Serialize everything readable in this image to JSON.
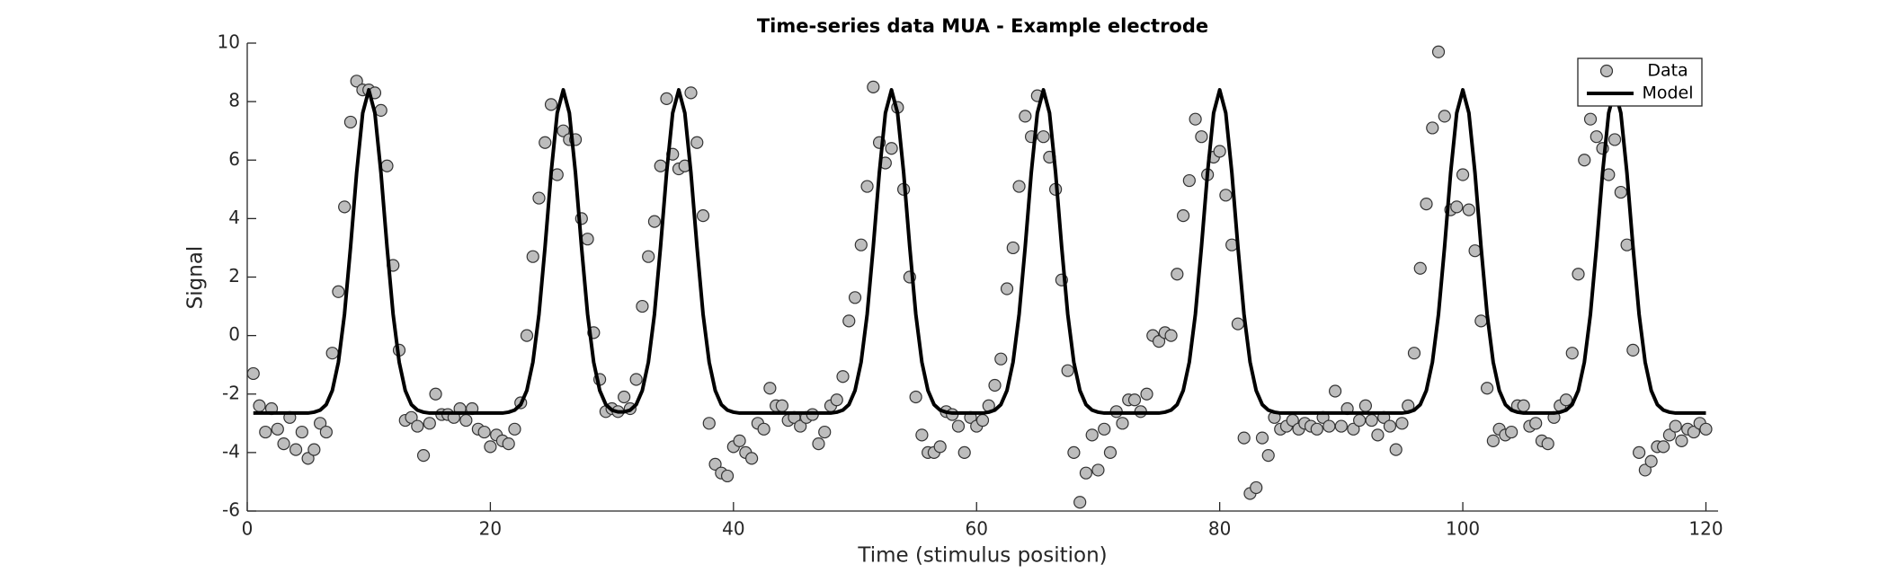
{
  "chart_data": {
    "type": "scatter",
    "title": "Time-series data MUA - Example electrode",
    "x_label": "Time (stimulus position)",
    "y_label": "Signal",
    "xlim": [
      0,
      121
    ],
    "ylim": [
      -6,
      10
    ],
    "xticks": [
      0,
      20,
      40,
      60,
      80,
      100,
      120
    ],
    "yticks": [
      -6,
      -4,
      -2,
      0,
      2,
      4,
      6,
      8,
      10
    ],
    "legend": "upper right",
    "x": [
      0.5,
      1,
      1.5,
      2,
      2.5,
      3,
      3.5,
      4,
      4.5,
      5,
      5.5,
      6,
      6.5,
      7,
      7.5,
      8,
      8.5,
      9,
      9.5,
      10,
      10.5,
      11,
      11.5,
      12,
      12.5,
      13,
      13.5,
      14,
      14.5,
      15,
      15.5,
      16,
      16.5,
      17,
      17.5,
      18,
      18.5,
      19,
      19.5,
      20,
      20.5,
      21,
      21.5,
      22,
      22.5,
      23,
      23.5,
      24,
      24.5,
      25,
      25.5,
      26,
      26.5,
      27,
      27.5,
      28,
      28.5,
      29,
      29.5,
      30,
      30.5,
      31,
      31.5,
      32,
      32.5,
      33,
      33.5,
      34,
      34.5,
      35,
      35.5,
      36,
      36.5,
      37,
      37.5,
      38,
      38.5,
      39,
      39.5,
      40,
      40.5,
      41,
      41.5,
      42,
      42.5,
      43,
      43.5,
      44,
      44.5,
      45,
      45.5,
      46,
      46.5,
      47,
      47.5,
      48,
      48.5,
      49,
      49.5,
      50,
      50.5,
      51,
      51.5,
      52,
      52.5,
      53,
      53.5,
      54,
      54.5,
      55,
      55.5,
      56,
      56.5,
      57,
      57.5,
      58,
      58.5,
      59,
      59.5,
      60,
      60.5,
      61,
      61.5,
      62,
      62.5,
      63,
      63.5,
      64,
      64.5,
      65,
      65.5,
      66,
      66.5,
      67,
      67.5,
      68,
      68.5,
      69,
      69.5,
      70,
      70.5,
      71,
      71.5,
      72,
      72.5,
      73,
      73.5,
      74,
      74.5,
      75,
      75.5,
      76,
      76.5,
      77,
      77.5,
      78,
      78.5,
      79,
      79.5,
      80,
      80.5,
      81,
      81.5,
      82,
      82.5,
      83,
      83.5,
      84,
      84.5,
      85,
      85.5,
      86,
      86.5,
      87,
      87.5,
      88,
      88.5,
      89,
      89.5,
      90,
      90.5,
      91,
      91.5,
      92,
      92.5,
      93,
      93.5,
      94,
      94.5,
      95,
      95.5,
      96,
      96.5,
      97,
      97.5,
      98,
      98.5,
      99,
      99.5,
      100,
      100.5,
      101,
      101.5,
      102,
      102.5,
      103,
      103.5,
      104,
      104.5,
      105,
      105.5,
      106,
      106.5,
      107,
      107.5,
      108,
      108.5,
      109,
      109.5,
      110,
      110.5,
      111,
      111.5,
      112,
      112.5,
      113,
      113.5,
      114,
      114.5,
      115,
      115.5,
      116,
      116.5,
      117,
      117.5,
      118,
      118.5,
      119,
      119.5,
      120
    ],
    "series": [
      {
        "name": "Data",
        "type": "scatter",
        "color": "#bdbdbd",
        "values": [
          -1.3,
          -2.4,
          -3.3,
          -2.5,
          -3.2,
          -3.7,
          -2.8,
          -3.9,
          -3.3,
          -4.2,
          -3.9,
          -3.0,
          -3.3,
          -0.6,
          1.5,
          4.4,
          7.3,
          8.7,
          8.4,
          8.4,
          8.3,
          7.7,
          5.8,
          2.4,
          -0.5,
          -2.9,
          -2.8,
          -3.1,
          -4.1,
          -3.0,
          -2.0,
          -2.7,
          -2.7,
          -2.8,
          -2.5,
          -2.9,
          -2.5,
          -3.2,
          -3.3,
          -3.8,
          -3.4,
          -3.6,
          -3.7,
          -3.2,
          -2.3,
          0.0,
          2.7,
          4.7,
          6.6,
          7.9,
          5.5,
          7.0,
          6.7,
          6.7,
          4.0,
          3.3,
          0.1,
          -1.5,
          -2.6,
          -2.5,
          -2.6,
          -2.1,
          -2.5,
          -1.5,
          1.0,
          2.7,
          3.9,
          5.8,
          8.1,
          6.2,
          5.7,
          5.8,
          8.3,
          6.6,
          4.1,
          -3.0,
          -4.4,
          -4.7,
          -4.8,
          -3.8,
          -3.6,
          -4.0,
          -4.2,
          -3.0,
          -3.2,
          -1.8,
          -2.4,
          -2.4,
          -2.9,
          -2.8,
          -3.1,
          -2.8,
          -2.7,
          -3.7,
          -3.3,
          -2.4,
          -2.2,
          -1.4,
          0.5,
          1.3,
          3.1,
          5.1,
          8.5,
          6.6,
          5.9,
          6.4,
          7.8,
          5.0,
          2.0,
          -2.1,
          -3.4,
          -4.0,
          -4.0,
          -3.8,
          -2.6,
          -2.7,
          -3.1,
          -4.0,
          -2.8,
          -3.1,
          -2.9,
          -2.4,
          -1.7,
          -0.8,
          1.6,
          3.0,
          5.1,
          7.5,
          6.8,
          8.2,
          6.8,
          6.1,
          5.0,
          1.9,
          -1.2,
          -4.0,
          -5.7,
          -4.7,
          -3.4,
          -4.6,
          -3.2,
          -4.0,
          -2.6,
          -3.0,
          -2.2,
          -2.2,
          -2.6,
          -2.0,
          0.0,
          -0.2,
          0.1,
          0.0,
          2.1,
          4.1,
          5.3,
          7.4,
          6.8,
          5.5,
          6.1,
          6.3,
          4.8,
          3.1,
          0.4,
          -3.5,
          -5.4,
          -5.2,
          -3.5,
          -4.1,
          -2.8,
          -3.2,
          -3.1,
          -2.9,
          -3.2,
          -3.0,
          -3.1,
          -3.2,
          -2.8,
          -3.1,
          -1.9,
          -3.1,
          -2.5,
          -3.2,
          -2.9,
          -2.4,
          -2.9,
          -3.4,
          -2.8,
          -3.1,
          -3.9,
          -3.0,
          -2.4,
          -0.6,
          2.3,
          4.5,
          7.1,
          9.7,
          7.5,
          4.3,
          4.4,
          5.5,
          4.3,
          2.9,
          0.5,
          -1.8,
          -3.6,
          -3.2,
          -3.4,
          -3.3,
          -2.4,
          -2.4,
          -3.1,
          -3.0,
          -3.6,
          -3.7,
          -2.8,
          -2.4,
          -2.2,
          -0.6,
          2.1,
          6.0,
          7.4,
          6.8,
          6.4,
          5.5,
          6.7,
          4.9,
          3.1,
          -0.5,
          -4.0,
          -4.6,
          -4.3,
          -3.8,
          -3.8,
          -3.4,
          -3.1,
          -3.6,
          -3.2,
          -3.3,
          -3.0,
          -3.2
        ]
      },
      {
        "name": "Model",
        "type": "line",
        "color": "#000000",
        "values": [
          -2.65,
          -2.65,
          -2.65,
          -2.65,
          -2.65,
          -2.65,
          -2.65,
          -2.65,
          -2.65,
          -2.65,
          -2.62,
          -2.55,
          -2.36,
          -1.88,
          -0.91,
          0.73,
          3.03,
          5.57,
          7.61,
          8.4,
          7.61,
          5.57,
          3.03,
          0.73,
          -0.91,
          -1.88,
          -2.36,
          -2.55,
          -2.62,
          -2.65,
          -2.65,
          -2.65,
          -2.65,
          -2.65,
          -2.65,
          -2.65,
          -2.65,
          -2.65,
          -2.65,
          -2.65,
          -2.65,
          -2.65,
          -2.62,
          -2.55,
          -2.36,
          -1.88,
          -0.91,
          0.73,
          3.03,
          5.57,
          7.61,
          8.4,
          7.61,
          5.57,
          3.03,
          0.73,
          -0.91,
          -1.88,
          -2.36,
          -2.55,
          -2.61,
          -2.61,
          -2.55,
          -2.36,
          -1.88,
          -0.91,
          0.73,
          3.03,
          5.57,
          7.61,
          8.4,
          7.61,
          5.57,
          3.03,
          0.73,
          -0.91,
          -1.88,
          -2.36,
          -2.55,
          -2.62,
          -2.65,
          -2.65,
          -2.65,
          -2.65,
          -2.65,
          -2.65,
          -2.65,
          -2.65,
          -2.65,
          -2.65,
          -2.65,
          -2.65,
          -2.65,
          -2.65,
          -2.65,
          -2.65,
          -2.62,
          -2.55,
          -2.36,
          -1.88,
          -0.91,
          0.73,
          3.03,
          5.57,
          7.61,
          8.4,
          7.61,
          5.57,
          3.03,
          0.73,
          -0.91,
          -1.88,
          -2.36,
          -2.55,
          -2.62,
          -2.65,
          -2.65,
          -2.65,
          -2.65,
          -2.65,
          -2.65,
          -2.62,
          -2.55,
          -2.36,
          -1.88,
          -0.91,
          0.73,
          3.03,
          5.57,
          7.61,
          8.4,
          7.61,
          5.57,
          3.03,
          0.73,
          -0.91,
          -1.88,
          -2.36,
          -2.55,
          -2.62,
          -2.65,
          -2.65,
          -2.65,
          -2.65,
          -2.65,
          -2.65,
          -2.65,
          -2.65,
          -2.65,
          -2.65,
          -2.62,
          -2.55,
          -2.36,
          -1.88,
          -0.91,
          0.73,
          3.03,
          5.57,
          7.61,
          8.4,
          7.61,
          5.57,
          3.03,
          0.73,
          -0.91,
          -1.88,
          -2.36,
          -2.55,
          -2.62,
          -2.65,
          -2.65,
          -2.65,
          -2.65,
          -2.65,
          -2.65,
          -2.65,
          -2.65,
          -2.65,
          -2.65,
          -2.65,
          -2.65,
          -2.65,
          -2.65,
          -2.65,
          -2.65,
          -2.65,
          -2.65,
          -2.65,
          -2.65,
          -2.65,
          -2.62,
          -2.55,
          -2.36,
          -1.88,
          -0.91,
          0.73,
          3.03,
          5.57,
          7.61,
          8.4,
          7.61,
          5.57,
          3.03,
          0.73,
          -0.91,
          -1.88,
          -2.36,
          -2.55,
          -2.62,
          -2.65,
          -2.65,
          -2.65,
          -2.65,
          -2.65,
          -2.65,
          -2.62,
          -2.55,
          -2.36,
          -1.88,
          -0.91,
          0.73,
          3.03,
          5.57,
          7.61,
          8.4,
          7.61,
          5.57,
          3.03,
          0.73,
          -0.91,
          -1.88,
          -2.36,
          -2.55,
          -2.62,
          -2.65,
          -2.65,
          -2.65,
          -2.65,
          -2.65,
          -2.65
        ]
      }
    ]
  }
}
